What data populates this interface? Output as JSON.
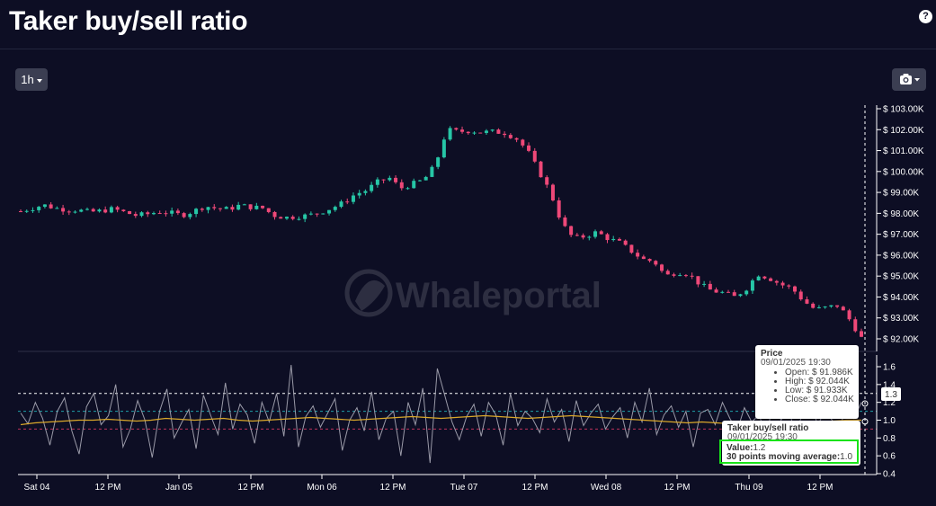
{
  "header": {
    "title": "Taker buy/sell ratio",
    "help_icon": "question-icon"
  },
  "toolbar": {
    "timeframe_label": "1h",
    "export_icon": "camera-icon"
  },
  "watermark": "Whaleportal",
  "chart_data": [
    {
      "type": "candlestick",
      "name": "Price",
      "y_ticks": [
        "$ 103.00K",
        "$ 102.00K",
        "$ 101.00K",
        "$ 100.00K",
        "$ 99.00K",
        "$ 98.00K",
        "$ 97.00K",
        "$ 96.00K",
        "$ 95.00K",
        "$ 94.00K",
        "$ 93.00K",
        "$ 92.00K"
      ],
      "ylim": [
        91500,
        103200
      ],
      "x_ticks": [
        "Sat 04",
        "12 PM",
        "Jan 05",
        "12 PM",
        "Mon 06",
        "12 PM",
        "Tue 07",
        "12 PM",
        "Wed 08",
        "12 PM",
        "Thu 09",
        "12 PM"
      ],
      "colors": {
        "up": "#26c6a6",
        "down": "#ee4878"
      },
      "close_path": [
        98100,
        98250,
        98400,
        98250,
        98180,
        98150,
        98060,
        98120,
        98210,
        98050,
        97900,
        97960,
        98080,
        98020,
        97910,
        98100,
        98350,
        98230,
        98200,
        98380,
        98300,
        98250,
        97900,
        97800,
        97850,
        97900,
        98050,
        98250,
        98500,
        98900,
        99100,
        99500,
        99700,
        99200,
        99400,
        99600,
        100300,
        102000,
        101900,
        101950,
        101880,
        101900,
        101850,
        101600,
        101000,
        100000,
        99000,
        97500,
        96800,
        96900,
        97100,
        96800,
        96600,
        96200,
        95800,
        95700,
        95000,
        95200,
        95100,
        94600,
        94300,
        94200,
        94000,
        94400,
        95100,
        94900,
        94600,
        94400,
        93800,
        93400,
        93500,
        93600,
        92900,
        92044
      ],
      "last_candle": {
        "date": "09/01/2025 19:30",
        "open": "$ 91.986K",
        "high": "$ 92.044K",
        "low": "$ 91.933K",
        "close": "$ 92.044K"
      }
    },
    {
      "type": "line",
      "name": "Taker buy/sell ratio",
      "y_ticks": [
        "1.6",
        "1.4",
        "1.2",
        "1.0",
        "0.8",
        "0.6",
        "0.4"
      ],
      "ylim": [
        0.4,
        1.7
      ],
      "crosshair_value_label": "1.3",
      "series": [
        {
          "name": "Value",
          "color": "#9a9aa8",
          "values": [
            1.08,
            0.96,
            1.2,
            1.02,
            0.72,
            1.1,
            1.25,
            0.88,
            0.62,
            1.15,
            1.3,
            0.95,
            1.05,
            1.4,
            0.7,
            0.9,
            1.22,
            1.0,
            0.58,
            1.1,
            1.35,
            0.8,
            0.97,
            1.12,
            0.68,
            1.28,
            1.05,
            0.84,
            1.42,
            0.9,
            1.18,
            1.06,
            0.74,
            1.2,
            0.98,
            1.3,
            0.82,
            1.62,
            0.7,
            1.04,
            1.16,
            0.92,
            1.08,
            1.24,
            0.66,
            1.0,
            1.14,
            0.88,
            1.32,
            0.78,
            1.02,
            1.1,
            0.6,
            1.2,
            0.95,
            1.36,
            0.52,
            1.58,
            1.28,
            0.98,
            0.78,
            1.04,
            1.18,
            0.82,
            1.2,
            1.06,
            0.72,
            1.3,
            0.94,
            1.1,
            1.02,
            0.86,
            1.24,
            0.98,
            1.12,
            0.76,
            1.22,
            0.94,
            1.08,
            1.18,
            0.9,
            1.04,
            1.14,
            0.8,
            1.2,
            0.98,
            1.36,
            0.84,
            1.06,
            1.16,
            0.92,
            1.1,
            0.7,
            1.08,
            1.12,
            0.95,
            1.2,
            1.02,
            0.88,
            1.14,
            0.98,
            1.06,
            0.82,
            1.22,
            1.0,
            1.12,
            0.86,
            1.08,
            1.26,
            0.94,
            1.1,
            1.0,
            0.9,
            1.18,
            1.02,
            1.2
          ]
        },
        {
          "name": "30 points moving average",
          "color": "#d9a72a",
          "values": [
            0.95,
            0.97,
            0.98,
            0.99,
            1.0,
            1.0,
            1.01,
            1.0,
            0.99,
            1.0,
            1.02,
            1.01,
            1.0,
            1.01,
            1.02,
            1.0,
            0.99,
            1.0,
            1.01,
            1.02,
            1.03,
            1.02,
            1.01,
            1.0,
            1.01,
            1.02,
            1.03,
            1.04,
            1.03,
            1.02,
            1.03,
            1.04,
            1.05,
            1.04,
            1.03,
            1.02,
            1.03,
            1.04,
            1.05,
            1.04,
            1.03,
            1.02,
            1.01,
            1.0,
            0.99,
            0.98,
            0.97,
            0.98,
            0.97,
            0.96,
            0.97,
            0.98,
            0.97,
            0.96,
            0.97,
            0.98,
            0.99,
            1.0,
            1.0
          ]
        }
      ],
      "reference_lines": [
        {
          "value": 1.3,
          "color": "#ffffff",
          "style": "dashed"
        },
        {
          "value": 1.1,
          "color": "#1fa0a8",
          "style": "dashed"
        },
        {
          "value": 0.9,
          "color": "#c0335e",
          "style": "dashed"
        }
      ],
      "tooltip": {
        "title": "Taker buy/sell ratio",
        "date": "09/01/2025 19:30",
        "value_label": "Value:",
        "value": "1.2",
        "ma_label": "30 points moving average:",
        "ma_value": "1.0"
      }
    }
  ],
  "price_tooltip": {
    "title": "Price",
    "date": "09/01/2025 19:30",
    "open_label": "Open:",
    "high_label": "High:",
    "low_label": "Low:",
    "close_label": "Close:"
  }
}
